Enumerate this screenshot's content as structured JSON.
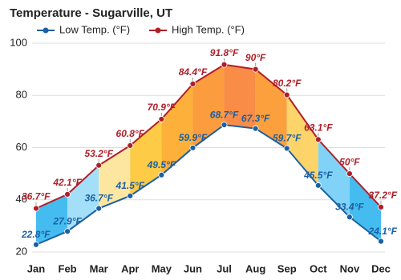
{
  "chart_data": {
    "type": "line",
    "title": "Temperature - Sugarville, UT",
    "categories": [
      "Jan",
      "Feb",
      "Mar",
      "Apr",
      "May",
      "Jun",
      "Jul",
      "Aug",
      "Sep",
      "Oct",
      "Nov",
      "Dec"
    ],
    "series": [
      {
        "name": "Low Temp. (°F)",
        "color": "#1d5fa3",
        "values": [
          22.8,
          27.9,
          36.7,
          41.5,
          49.5,
          59.9,
          68.7,
          67.3,
          59.7,
          45.5,
          33.4,
          24.1
        ],
        "value_labels": [
          "22.8°F",
          "27.9°F",
          "36.7°F",
          "41.5°F",
          "49.5°F",
          "59.9°F",
          "68.7°F",
          "67.3°F",
          "59.7°F",
          "45.5°F",
          "33.4°F",
          "24.1°F"
        ]
      },
      {
        "name": "High Temp. (°F)",
        "color": "#b01e28",
        "values": [
          36.7,
          42.1,
          53.2,
          60.8,
          70.9,
          84.4,
          91.8,
          90,
          80.2,
          63.1,
          50,
          37.2
        ],
        "value_labels": [
          "36.7°F",
          "42.1°F",
          "53.2°F",
          "60.8°F",
          "70.9°F",
          "84.4°F",
          "91.8°F",
          "90°F",
          "80.2°F",
          "63.1°F",
          "50°F",
          "37.2°F"
        ]
      }
    ],
    "band_colors": [
      "#45bcf0",
      "#a3dff8",
      "#fde7a0",
      "#fdcb45",
      "#fdb13a",
      "#fb9c3e",
      "#f98c47",
      "#fba03c",
      "#fdd46a",
      "#80d3f7",
      "#45bcf0"
    ],
    "ylim": [
      20,
      100
    ],
    "yticks": [
      20,
      40,
      60,
      80,
      100
    ],
    "grid": true
  }
}
